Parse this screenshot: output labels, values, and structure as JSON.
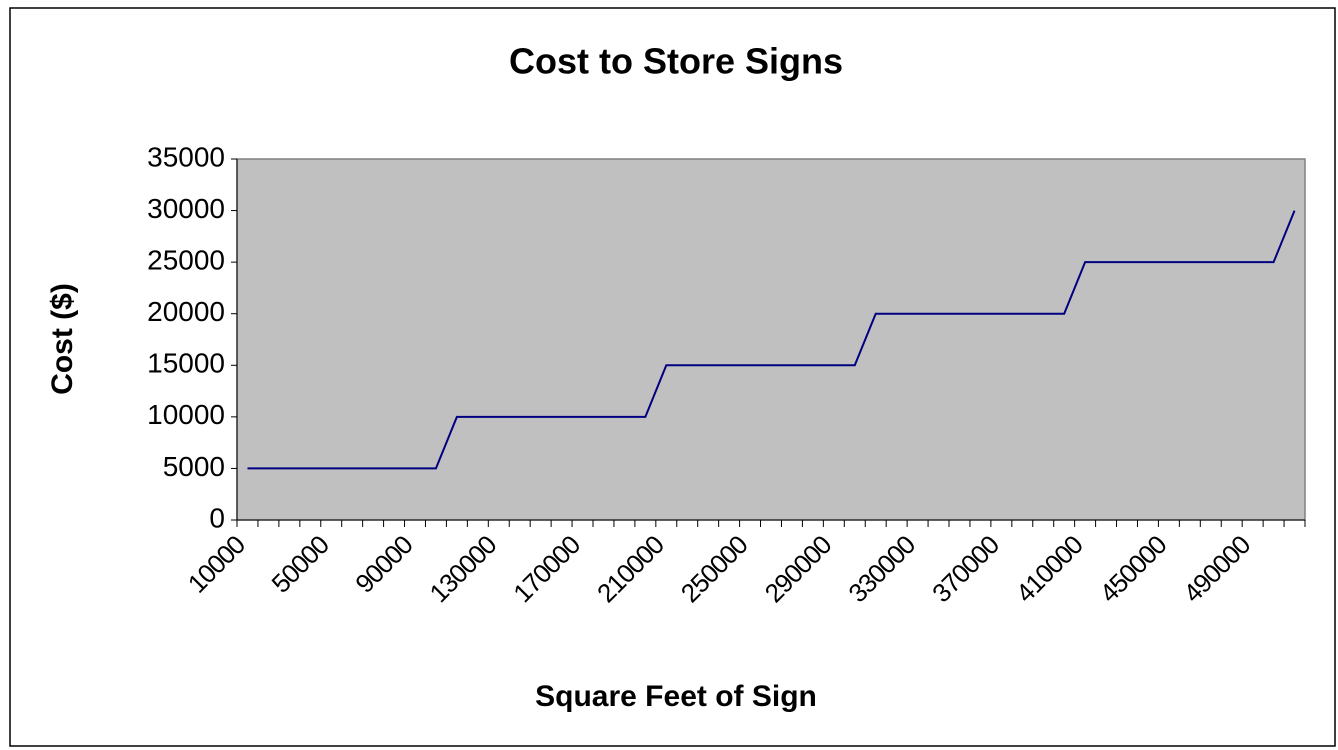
{
  "chart_data": {
    "type": "line",
    "title": "Cost to Store Signs",
    "x_label": "Square Feet of Sign",
    "y_label": "Cost ($)",
    "categories": [
      "10000",
      null,
      null,
      null,
      "50000",
      null,
      null,
      null,
      "90000",
      null,
      null,
      null,
      "130000",
      null,
      null,
      null,
      "170000",
      null,
      null,
      null,
      "210000",
      null,
      null,
      null,
      "250000",
      null,
      null,
      null,
      "290000",
      null,
      null,
      null,
      "330000",
      null,
      null,
      null,
      "370000",
      null,
      null,
      null,
      "410000",
      null,
      null,
      null,
      "450000",
      null,
      null,
      null,
      "490000",
      null,
      null
    ],
    "series": [
      {
        "name": "Cost",
        "color": "#000080",
        "values": [
          5000,
          5000,
          5000,
          5000,
          5000,
          5000,
          5000,
          5000,
          5000,
          5000,
          10000,
          10000,
          10000,
          10000,
          10000,
          10000,
          10000,
          10000,
          10000,
          10000,
          15000,
          15000,
          15000,
          15000,
          15000,
          15000,
          15000,
          15000,
          15000,
          15000,
          20000,
          20000,
          20000,
          20000,
          20000,
          20000,
          20000,
          20000,
          20000,
          20000,
          25000,
          25000,
          25000,
          25000,
          25000,
          25000,
          25000,
          25000,
          25000,
          25000,
          30000
        ]
      }
    ],
    "ylim": [
      0,
      35000
    ],
    "yticks": [
      0,
      5000,
      10000,
      15000,
      20000,
      25000,
      30000,
      35000
    ],
    "plot_background": "#c0c0c0"
  }
}
